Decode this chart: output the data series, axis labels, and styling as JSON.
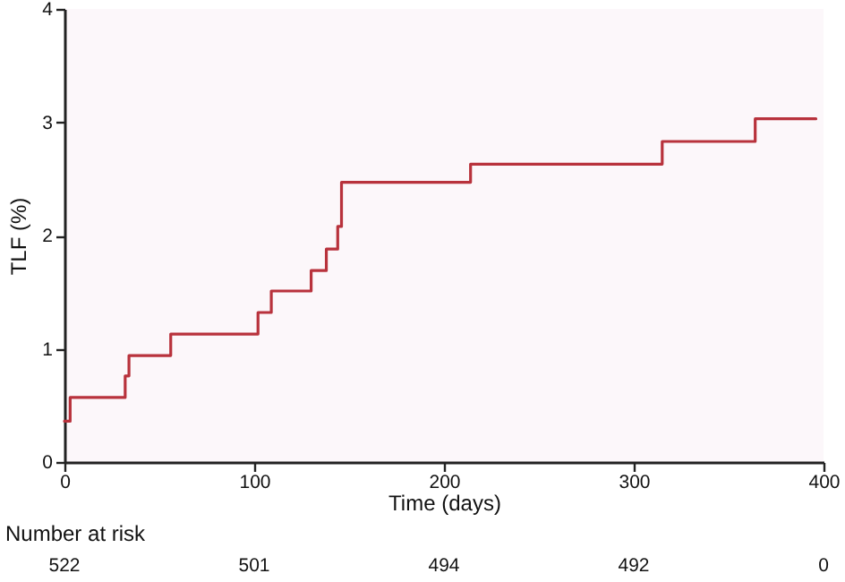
{
  "chart_data": {
    "type": "step",
    "ylabel": "TLF (%)",
    "xlabel": "Time (days)",
    "x": [
      0,
      3,
      32,
      34,
      56,
      102,
      109,
      130,
      138,
      144,
      146,
      214,
      315,
      364,
      396
    ],
    "series": [
      {
        "color": "#b8323c",
        "values": [
          0.36,
          0.57,
          0.76,
          0.94,
          1.13,
          1.32,
          1.51,
          1.69,
          1.88,
          2.08,
          2.47,
          2.63,
          2.83,
          3.03,
          3.03
        ]
      }
    ],
    "xlim": [
      0,
      400
    ],
    "xticks": [
      0,
      100,
      200,
      300,
      400
    ],
    "ylim": [
      0,
      4
    ],
    "yticks": [
      0,
      1,
      2,
      3,
      4
    ],
    "annotations": [
      "Number at risk",
      "522",
      "501",
      "494",
      "492",
      "0"
    ]
  }
}
